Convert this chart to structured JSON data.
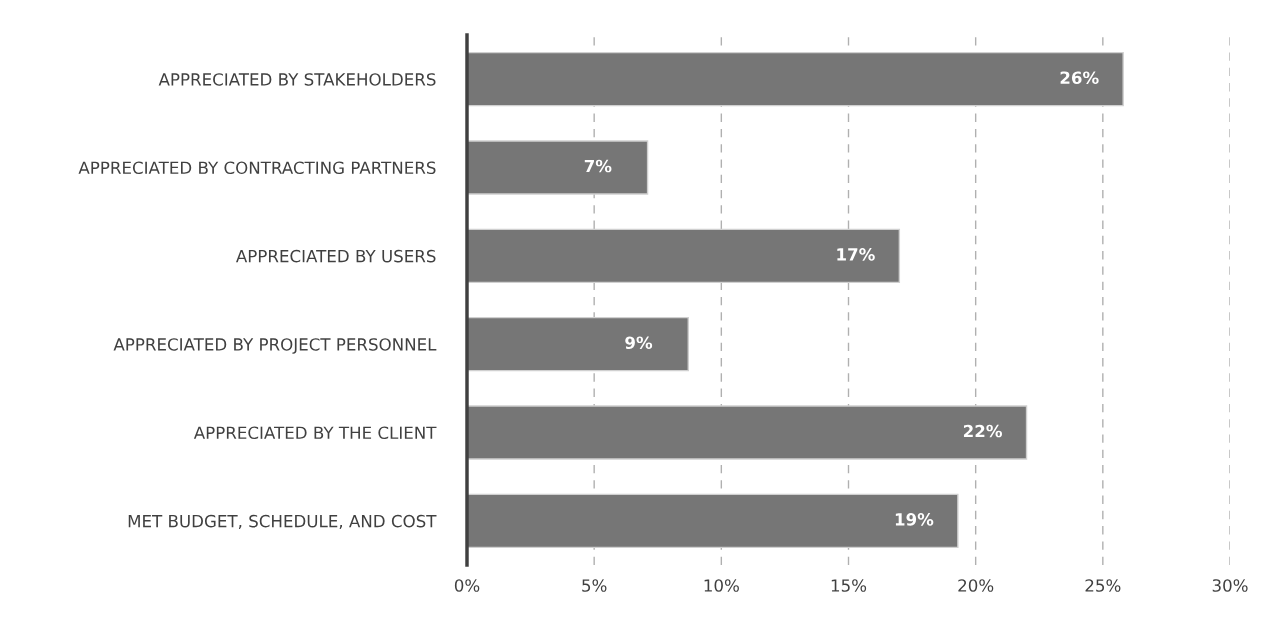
{
  "chart_data": {
    "type": "bar",
    "orientation": "horizontal",
    "categories": [
      "APPRECIATED BY STAKEHOLDERS",
      "APPRECIATED BY CONTRACTING PARTNERS",
      "APPRECIATED BY USERS",
      "APPRECIATED BY PROJECT PERSONNEL",
      "APPRECIATED BY THE CLIENT",
      "MET BUDGET, SCHEDULE, AND COST"
    ],
    "values": [
      25.8,
      7.1,
      17.0,
      8.7,
      22.0,
      19.3
    ],
    "value_labels": [
      "26%",
      "7%",
      "17%",
      "9%",
      "22%",
      "19%"
    ],
    "color": "#767676",
    "xlim": [
      0,
      30
    ],
    "xticks": [
      {
        "value": 0,
        "label": "0%"
      },
      {
        "value": 5,
        "label": "5%"
      },
      {
        "value": 10,
        "label": "10%"
      },
      {
        "value": 15,
        "label": "15%"
      },
      {
        "value": 20,
        "label": "20%"
      },
      {
        "value": 25,
        "label": "25%"
      },
      {
        "value": 30,
        "label": "30%"
      }
    ],
    "grid": "x",
    "legend": false
  }
}
